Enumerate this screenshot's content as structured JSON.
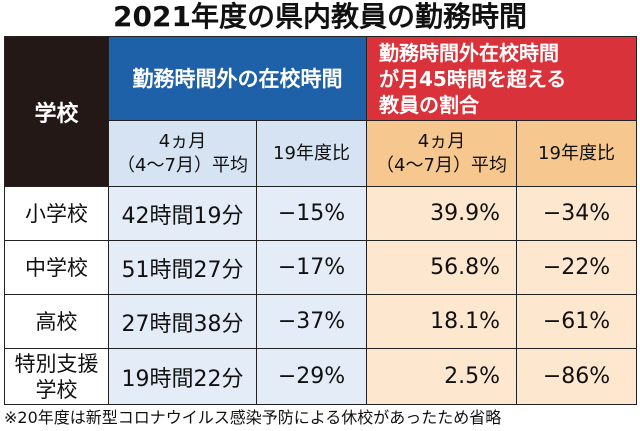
{
  "title": "2021年度の県内教員の勤務時間",
  "headers": {
    "school": "学校",
    "overtime": "勤務時間外の在校時間",
    "ratio_line1": "勤務時間外在校時間",
    "ratio_line2": "が月45時間を超える",
    "ratio_line3": "教員の割合",
    "avg_line1": "4ヵ月",
    "avg_line2": "（4〜7月）平均",
    "yoy": "19年度比"
  },
  "rows": [
    {
      "school": "小学校",
      "hours": "42時間19分",
      "hours_yoy": "−15%",
      "ratio": "39.9%",
      "ratio_yoy": "−34%"
    },
    {
      "school": "中学校",
      "hours": "51時間27分",
      "hours_yoy": "−17%",
      "ratio": "56.8%",
      "ratio_yoy": "−22%"
    },
    {
      "school": "高校",
      "hours": "27時間38分",
      "hours_yoy": "−37%",
      "ratio": "18.1%",
      "ratio_yoy": "−61%"
    },
    {
      "school_line1": "特別支援",
      "school_line2": "学校",
      "hours": "19時間22分",
      "hours_yoy": "−29%",
      "ratio": "2.5%",
      "ratio_yoy": "−86%"
    }
  ],
  "footnote": "※20年度は新型コロナウイルス感染予防による休校があったため省略",
  "colors": {
    "school_header": "#231815",
    "blue_header": "#1f61a9",
    "red_header": "#d9323a",
    "blue_sub": "#d6e3f2",
    "orange_sub": "#f6c88f",
    "blue_cell": "#e4edf7",
    "orange_cell": "#fde8cf"
  }
}
